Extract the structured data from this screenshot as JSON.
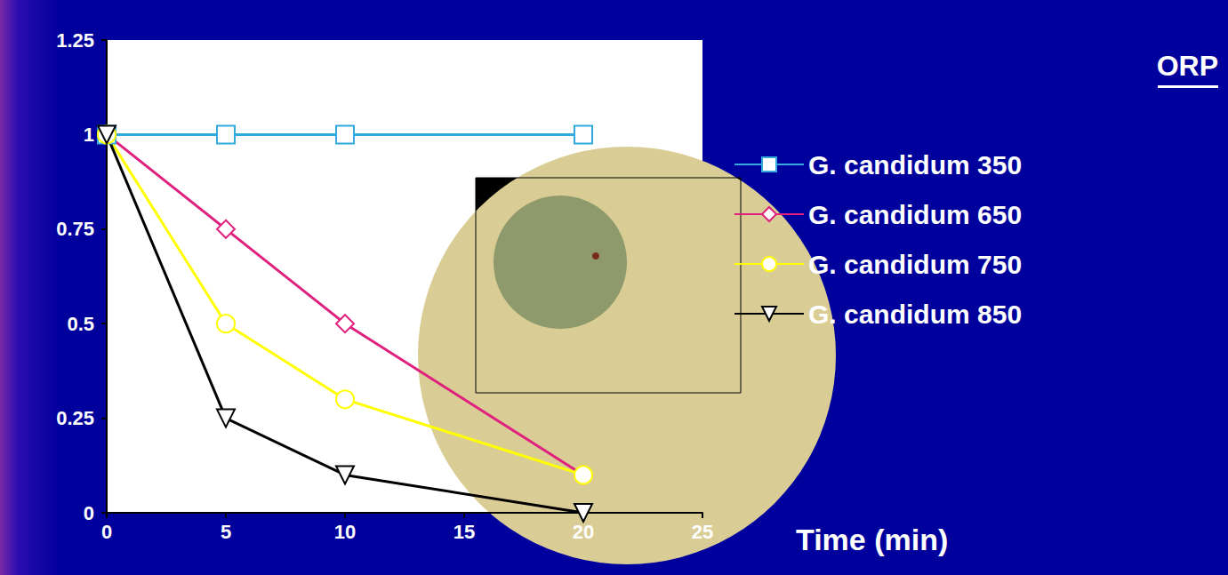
{
  "chart_data": {
    "type": "line",
    "x_label": "Time (min)",
    "legend_title": "ORP",
    "legend": "right",
    "grid": false,
    "xlim": [
      0,
      25
    ],
    "xticks": [
      0,
      5,
      10,
      15,
      20,
      25
    ],
    "ylim": [
      0,
      1.25
    ],
    "yticks": [
      0,
      0.25,
      0.5,
      0.75,
      1,
      1.25
    ],
    "series": [
      {
        "name": "G. candidum 350",
        "color": "#33aadd",
        "marker": "square",
        "line_style": "solid",
        "x": [
          0,
          5,
          10,
          20
        ],
        "values": [
          1,
          1,
          1,
          1
        ]
      },
      {
        "name": "G. candidum 650",
        "color": "#e0207f",
        "marker": "diamond",
        "line_style": "solid",
        "x": [
          0,
          5,
          10,
          20
        ],
        "values": [
          1,
          0.75,
          0.5,
          0.1
        ]
      },
      {
        "name": "G. candidum 750",
        "color": "#ffff00",
        "marker": "circle",
        "line_style": "solid",
        "x": [
          0,
          5,
          10,
          20
        ],
        "values": [
          1,
          0.5,
          0.3,
          0.1
        ]
      },
      {
        "name": "G. candidum 850",
        "color": "#000000",
        "marker": "triangle_down",
        "line_style": "solid",
        "x": [
          0,
          5,
          10,
          20
        ],
        "values": [
          1,
          0.25,
          0.1,
          0
        ]
      }
    ]
  }
}
